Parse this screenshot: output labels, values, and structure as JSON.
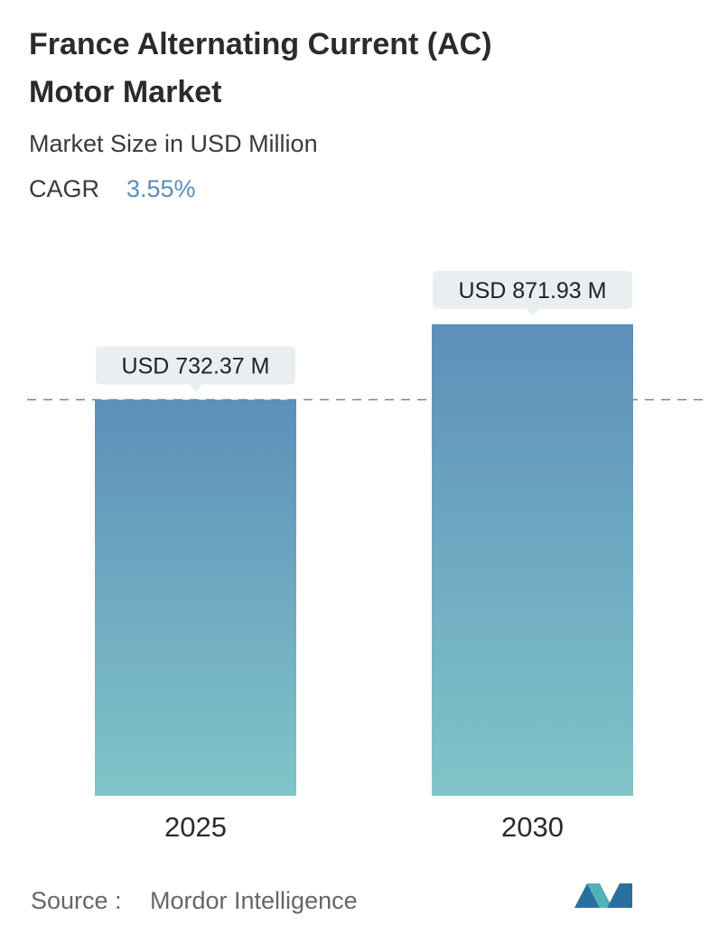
{
  "chart_data": {
    "type": "bar",
    "title": "France Alternating Current (AC) Motor Market",
    "subtitle": "Market Size in USD Million",
    "cagr_label": "CAGR",
    "cagr_value": "3.55%",
    "categories": [
      "2025",
      "2030"
    ],
    "values": [
      732.37,
      871.93
    ],
    "value_labels": [
      "USD 732.37 M",
      "USD 871.93 M"
    ],
    "source_label": "Source :",
    "source": "Mordor Intelligence"
  }
}
